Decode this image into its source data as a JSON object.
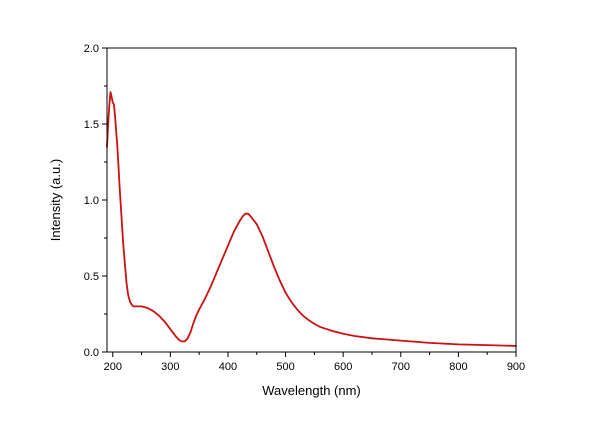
{
  "chart_data": {
    "type": "line",
    "title": "",
    "xlabel": "Wavelength (nm)",
    "ylabel": "Intensity (a.u.)",
    "xlim": [
      190,
      900
    ],
    "ylim": [
      0.0,
      2.0
    ],
    "x_ticks": [
      200,
      300,
      400,
      500,
      600,
      700,
      800,
      900
    ],
    "x_tick_labels": [
      "200",
      "300",
      "400",
      "500",
      "600",
      "700",
      "800",
      "900"
    ],
    "y_ticks": [
      0.0,
      0.5,
      1.0,
      1.5,
      2.0
    ],
    "y_tick_labels": [
      "0.0",
      "0.5",
      "1.0",
      "1.5",
      "2.0"
    ],
    "grid": false,
    "legend": "none",
    "series": [
      {
        "color": "#cc1111",
        "x": [
          190,
          192,
          194,
          196,
          198,
          200,
          202,
          204,
          206,
          208,
          210,
          212,
          215,
          218,
          221,
          224,
          227,
          230,
          233,
          236,
          240,
          245,
          250,
          260,
          270,
          280,
          290,
          300,
          310,
          315,
          320,
          325,
          330,
          335,
          340,
          345,
          350,
          360,
          370,
          380,
          390,
          400,
          410,
          420,
          425,
          430,
          435,
          440,
          450,
          460,
          470,
          480,
          490,
          500,
          510,
          520,
          530,
          540,
          550,
          560,
          580,
          600,
          620,
          650,
          700,
          750,
          800,
          850,
          900
        ],
        "y": [
          1.35,
          1.5,
          1.62,
          1.71,
          1.68,
          1.64,
          1.63,
          1.55,
          1.45,
          1.35,
          1.22,
          1.08,
          0.9,
          0.72,
          0.58,
          0.45,
          0.37,
          0.33,
          0.31,
          0.3,
          0.3,
          0.3,
          0.3,
          0.29,
          0.27,
          0.24,
          0.2,
          0.15,
          0.1,
          0.08,
          0.07,
          0.07,
          0.09,
          0.13,
          0.19,
          0.24,
          0.28,
          0.35,
          0.43,
          0.52,
          0.61,
          0.7,
          0.79,
          0.86,
          0.89,
          0.91,
          0.91,
          0.89,
          0.84,
          0.76,
          0.66,
          0.56,
          0.47,
          0.39,
          0.33,
          0.28,
          0.24,
          0.21,
          0.185,
          0.165,
          0.14,
          0.12,
          0.105,
          0.09,
          0.075,
          0.06,
          0.05,
          0.045,
          0.04
        ]
      }
    ]
  }
}
